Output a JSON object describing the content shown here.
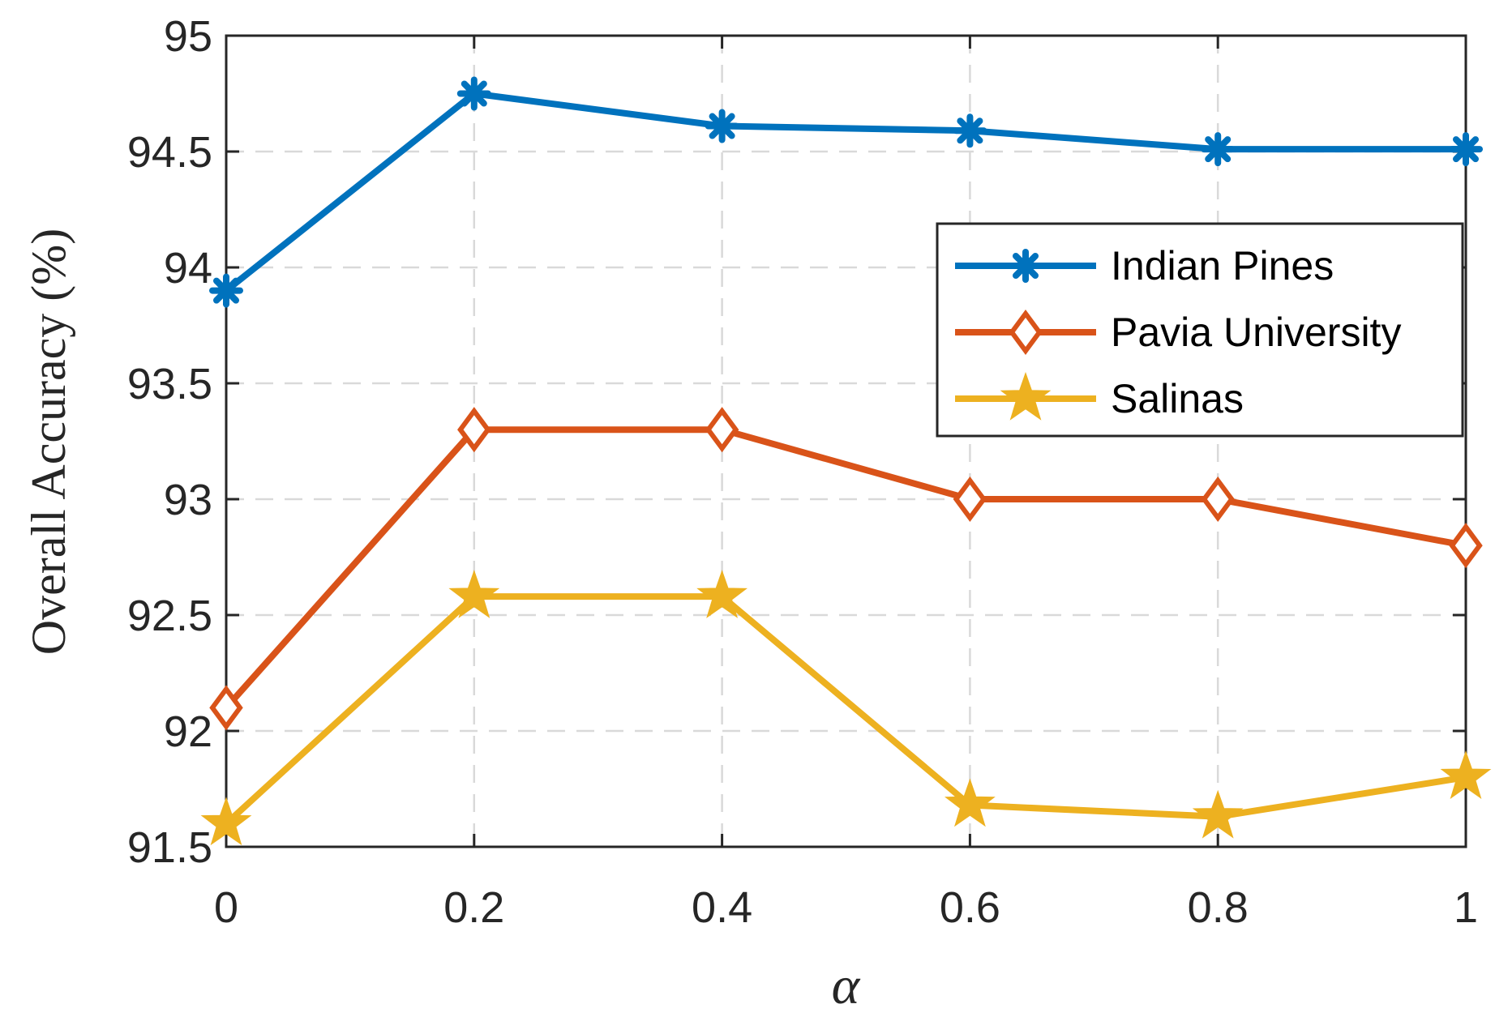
{
  "chart_data": {
    "type": "line",
    "title": "",
    "xlabel": "α",
    "ylabel": "Overall Accuracy (%)",
    "x": [
      0,
      0.2,
      0.4,
      0.6,
      0.8,
      1
    ],
    "xticks": [
      "0",
      "0.2",
      "0.4",
      "0.6",
      "0.8",
      "1"
    ],
    "yticks": [
      "91.5",
      "92",
      "92.5",
      "93",
      "93.5",
      "94",
      "94.5",
      "95"
    ],
    "xlim": [
      0,
      1
    ],
    "ylim": [
      91.5,
      95
    ],
    "grid": true,
    "legend_position": "upper-right",
    "series": [
      {
        "name": "Indian Pines",
        "color": "#0072BD",
        "marker": "asterisk",
        "values": [
          93.9,
          94.75,
          94.61,
          94.59,
          94.51,
          94.51
        ]
      },
      {
        "name": "Pavia University",
        "color": "#D95319",
        "marker": "diamond",
        "values": [
          92.1,
          93.3,
          93.3,
          93.0,
          93.0,
          92.8
        ]
      },
      {
        "name": "Salinas",
        "color": "#EDB120",
        "marker": "star",
        "values": [
          91.6,
          92.58,
          92.58,
          91.68,
          91.63,
          91.8
        ]
      }
    ]
  }
}
